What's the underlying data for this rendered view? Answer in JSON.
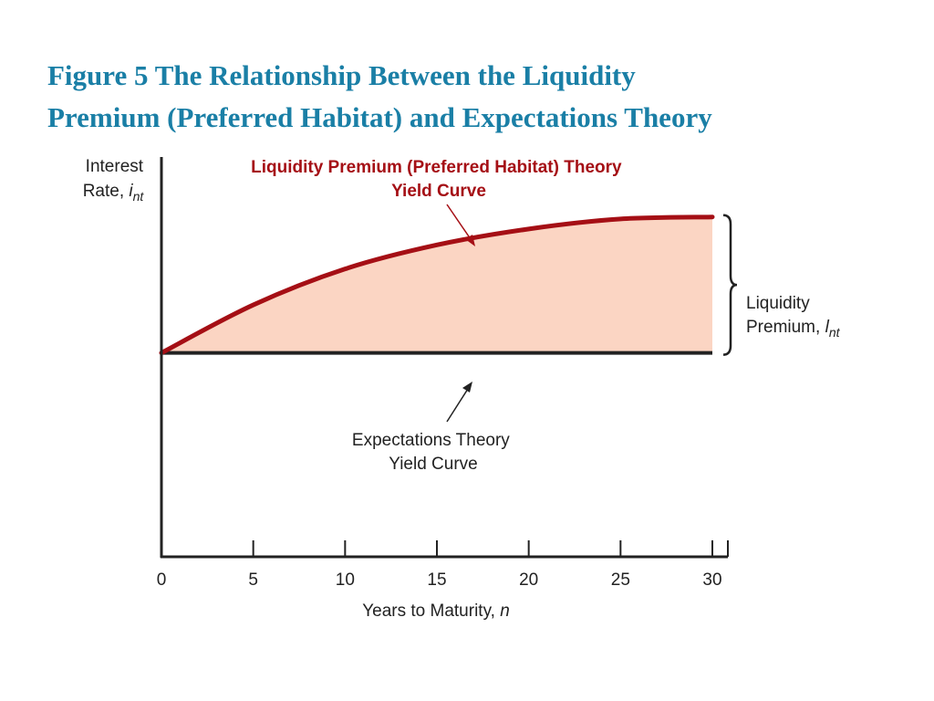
{
  "slide": {
    "title_line1": "Figure 5 The Relationship Between the Liquidity",
    "title_line2": "Premium (Preferred Habitat) and Expectations Theory"
  },
  "colors": {
    "title": "#1a7fa6",
    "lp_curve": "#a50f15",
    "lp_fill": "#fbd5c3",
    "expectations_line": "#222222",
    "axis": "#222222"
  },
  "chart_data": {
    "type": "area",
    "x": [
      0,
      5,
      10,
      15,
      20,
      25,
      30
    ],
    "xlim": [
      0,
      30
    ],
    "xticks": [
      0,
      5,
      10,
      15,
      20,
      25,
      30
    ],
    "ylim": [
      0,
      10
    ],
    "xlabel_text": "Years to Maturity, ",
    "xlabel_var": "n",
    "ylabel_line1": "Interest",
    "ylabel_line2_text": "Rate, ",
    "ylabel_line2_var": "i",
    "ylabel_line2_sub": "nt",
    "series": [
      {
        "name": "Liquidity Premium (Preferred Habitat) Theory Yield Curve",
        "label_line1": "Liquidity Premium (Preferred Habitat) Theory",
        "label_line2": "Yield Curve",
        "values": [
          5.1,
          6.3,
          7.2,
          7.8,
          8.2,
          8.45,
          8.5
        ]
      },
      {
        "name": "Expectations Theory Yield Curve",
        "label_line1": "Expectations Theory",
        "label_line2": "Yield Curve",
        "values": [
          5.1,
          5.1,
          5.1,
          5.1,
          5.1,
          5.1,
          5.1
        ]
      }
    ],
    "bracket": {
      "label_line1": "Liquidity",
      "label_line2_text": "Premium, ",
      "label_line2_var": "l",
      "label_line2_sub": "nt"
    },
    "grid": false,
    "legend": "none"
  }
}
